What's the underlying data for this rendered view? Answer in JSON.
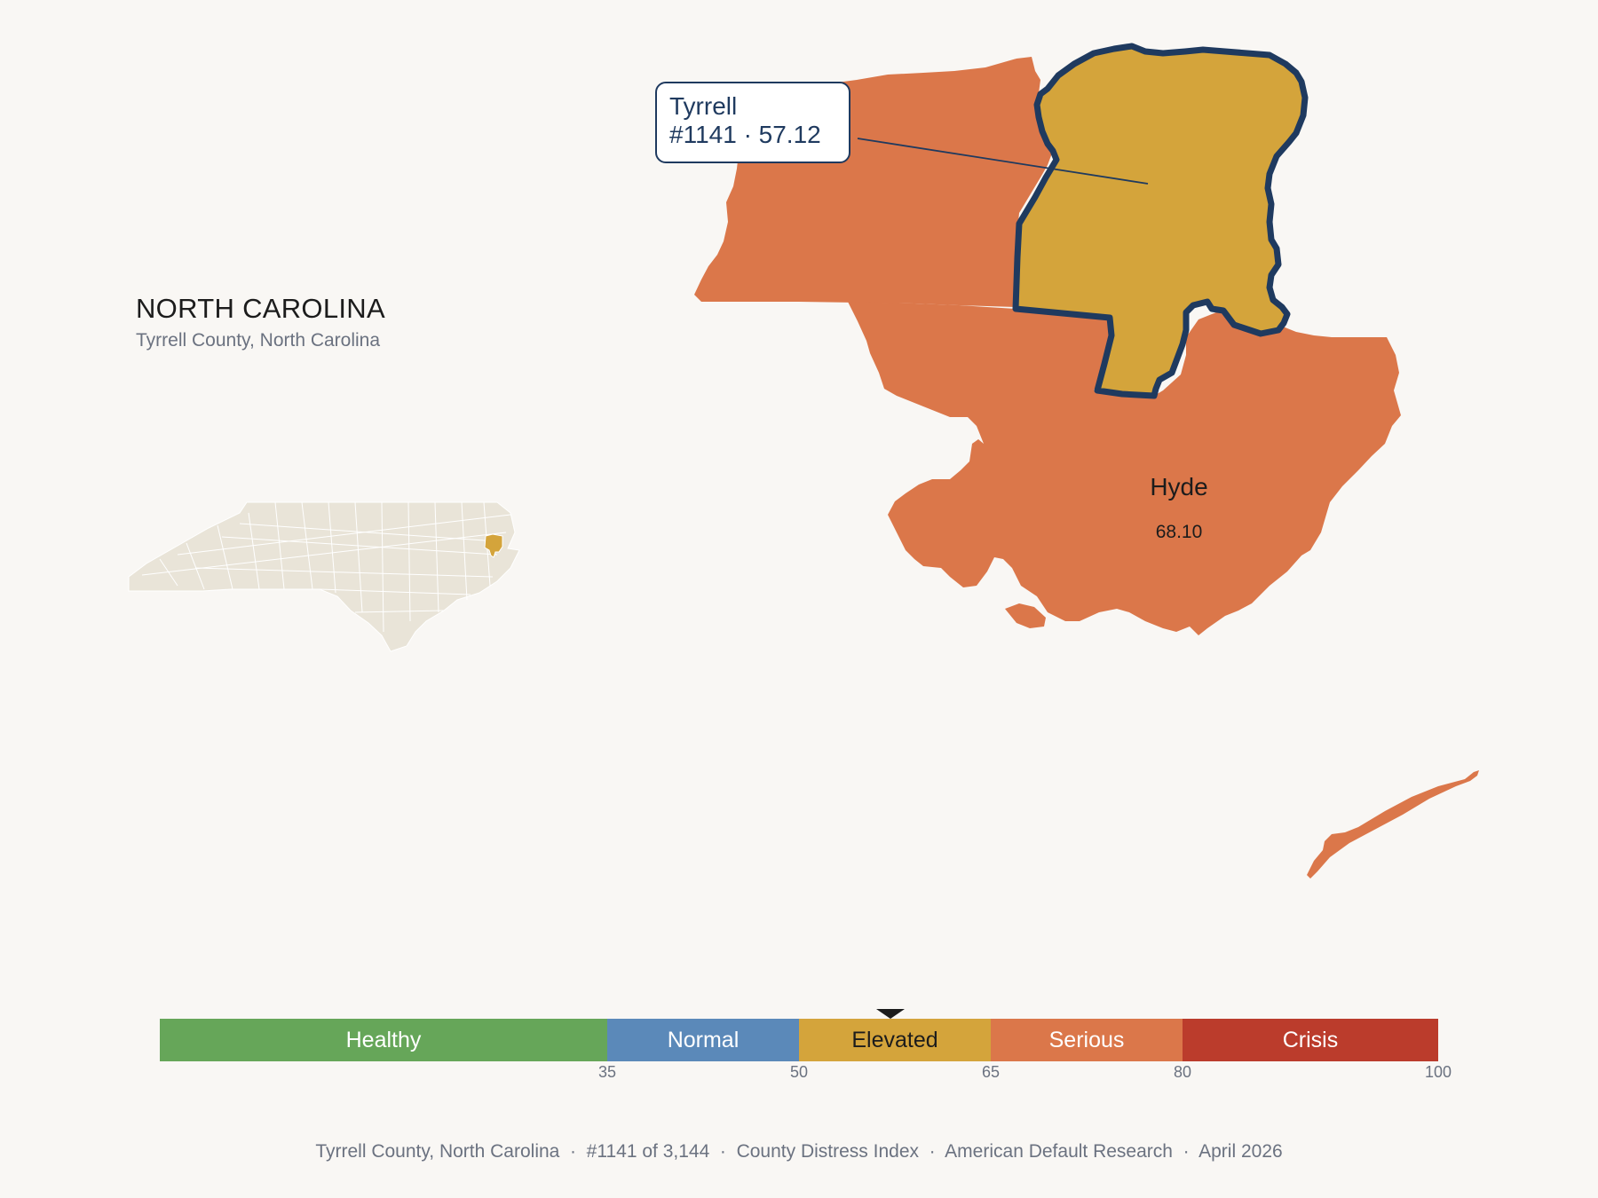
{
  "state": {
    "title": "NORTH CAROLINA",
    "subtitle": "Tyrrell County, North Carolina"
  },
  "highlight": {
    "name": "Tyrrell",
    "rank_score": "#1141 · 57.12",
    "score": 57.12,
    "color": "#d4a43b",
    "outline_color": "#1f3a5f"
  },
  "neighbor": {
    "name": "Hyde",
    "score_label": "68.10",
    "color": "#db774a"
  },
  "legend": {
    "segments": [
      {
        "label": "Healthy",
        "from": 0,
        "to": 35,
        "color": "#66a659"
      },
      {
        "label": "Normal",
        "from": 35,
        "to": 50,
        "color": "#5b89b9"
      },
      {
        "label": "Elevated",
        "from": 50,
        "to": 65,
        "color": "#d4a43b"
      },
      {
        "label": "Serious",
        "from": 65,
        "to": 80,
        "color": "#db774a"
      },
      {
        "label": "Crisis",
        "from": 80,
        "to": 100,
        "color": "#bb3c2c"
      }
    ],
    "ticks": [
      "35",
      "50",
      "65",
      "80",
      "100"
    ],
    "tick_values": [
      35,
      50,
      65,
      80,
      100
    ],
    "marker_value": 57.12
  },
  "footer": "Tyrrell County, North Carolina  ·  #1141 of 3,144  ·  County Distress Index  ·  American Default Research  ·  April 2026",
  "colors": {
    "background": "#f9f7f4",
    "inset_state": "#e9e4d8",
    "inset_borders": "#ffffff"
  }
}
